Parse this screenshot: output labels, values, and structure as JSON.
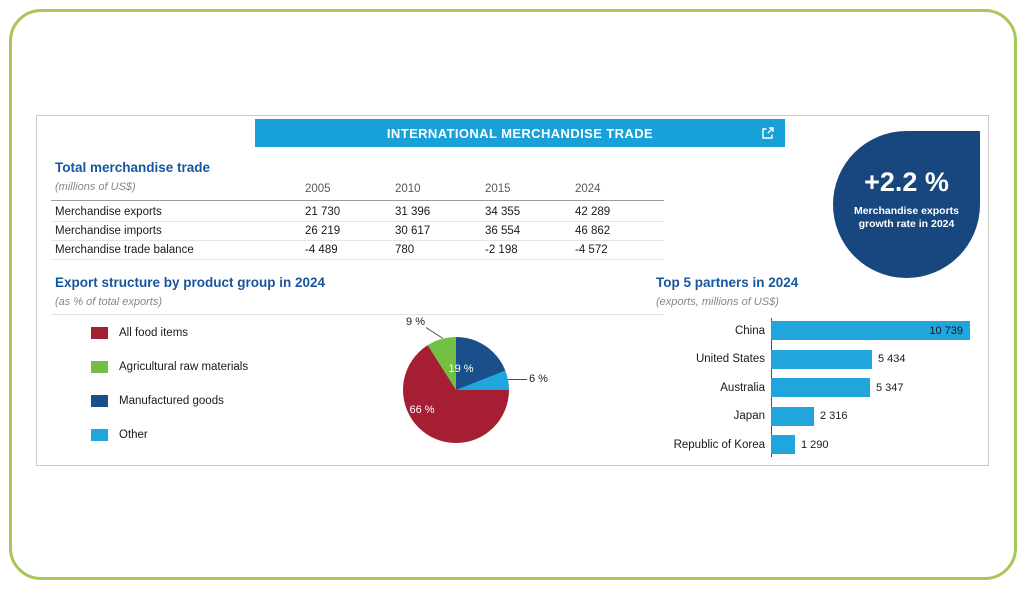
{
  "header": {
    "title": "INTERNATIONAL MERCHANDISE TRADE",
    "icon": "external-link-icon"
  },
  "badge": {
    "value": "+2.2 %",
    "caption": "Merchandise exports growth rate in 2024",
    "color": "#17477e"
  },
  "trade_table": {
    "title": "Total merchandise trade",
    "subtitle": "(millions of US$)",
    "years": [
      "2005",
      "2010",
      "2015",
      "2024"
    ],
    "rows": [
      {
        "label": "Merchandise exports",
        "values": [
          "21 730",
          "31 396",
          "34 355",
          "42 289"
        ]
      },
      {
        "label": "Merchandise imports",
        "values": [
          "26 219",
          "30 617",
          "36 554",
          "46 862"
        ]
      },
      {
        "label": "Merchandise trade balance",
        "values": [
          "-4 489",
          "780",
          "-2 198",
          "-4 572"
        ]
      }
    ]
  },
  "export_structure": {
    "title": "Export structure by product group in 2024",
    "subtitle": "(as % of total exports)",
    "legend": [
      {
        "label": "All food items",
        "color": "#a51e34"
      },
      {
        "label": "Agricultural raw materials",
        "color": "#72bf44"
      },
      {
        "label": "Manufactured goods",
        "color": "#1b4f8c"
      },
      {
        "label": "Other",
        "color": "#21a5dd"
      }
    ],
    "slices": [
      {
        "label": "Manufactured goods",
        "pct": 19,
        "text": "19 %",
        "color": "#1b4f8c"
      },
      {
        "label": "Other",
        "pct": 6,
        "text": "6 %",
        "color": "#21a5dd"
      },
      {
        "label": "All food items",
        "pct": 66,
        "text": "66 %",
        "color": "#a51e34"
      },
      {
        "label": "Agricultural raw materials",
        "pct": 9,
        "text": "9 %",
        "color": "#72bf44"
      }
    ]
  },
  "partners": {
    "title": "Top 5 partners in 2024",
    "subtitle": "(exports, millions of US$)",
    "bar_color": "#21a5dd",
    "items": [
      {
        "name": "China",
        "value": 10739,
        "label": "10 739"
      },
      {
        "name": "United States",
        "value": 5434,
        "label": "5 434"
      },
      {
        "name": "Australia",
        "value": 5347,
        "label": "5 347"
      },
      {
        "name": "Japan",
        "value": 2316,
        "label": "2 316"
      },
      {
        "name": "Republic of Korea",
        "value": 1290,
        "label": "1 290"
      }
    ]
  },
  "chart_data": [
    {
      "type": "table",
      "title": "Total merchandise trade",
      "unit": "millions of US$",
      "columns": [
        "2005",
        "2010",
        "2015",
        "2024"
      ],
      "rows": [
        {
          "label": "Merchandise exports",
          "values": [
            21730,
            31396,
            34355,
            42289
          ]
        },
        {
          "label": "Merchandise imports",
          "values": [
            26219,
            30617,
            36554,
            46862
          ]
        },
        {
          "label": "Merchandise trade balance",
          "values": [
            -4489,
            780,
            -2198,
            -4572
          ]
        }
      ]
    },
    {
      "type": "pie",
      "title": "Export structure by product group in 2024",
      "unit": "% of total exports",
      "labels": [
        "All food items",
        "Agricultural raw materials",
        "Manufactured goods",
        "Other"
      ],
      "values": [
        66,
        9,
        19,
        6
      ],
      "colors": [
        "#a51e34",
        "#72bf44",
        "#1b4f8c",
        "#21a5dd"
      ],
      "legend_position": "left"
    },
    {
      "type": "bar",
      "orientation": "horizontal",
      "title": "Top 5 partners in 2024",
      "unit": "exports, millions of US$",
      "categories": [
        "China",
        "United States",
        "Australia",
        "Japan",
        "Republic of Korea"
      ],
      "values": [
        10739,
        5434,
        5347,
        2316,
        1290
      ],
      "xlim": [
        0,
        10739
      ]
    }
  ]
}
